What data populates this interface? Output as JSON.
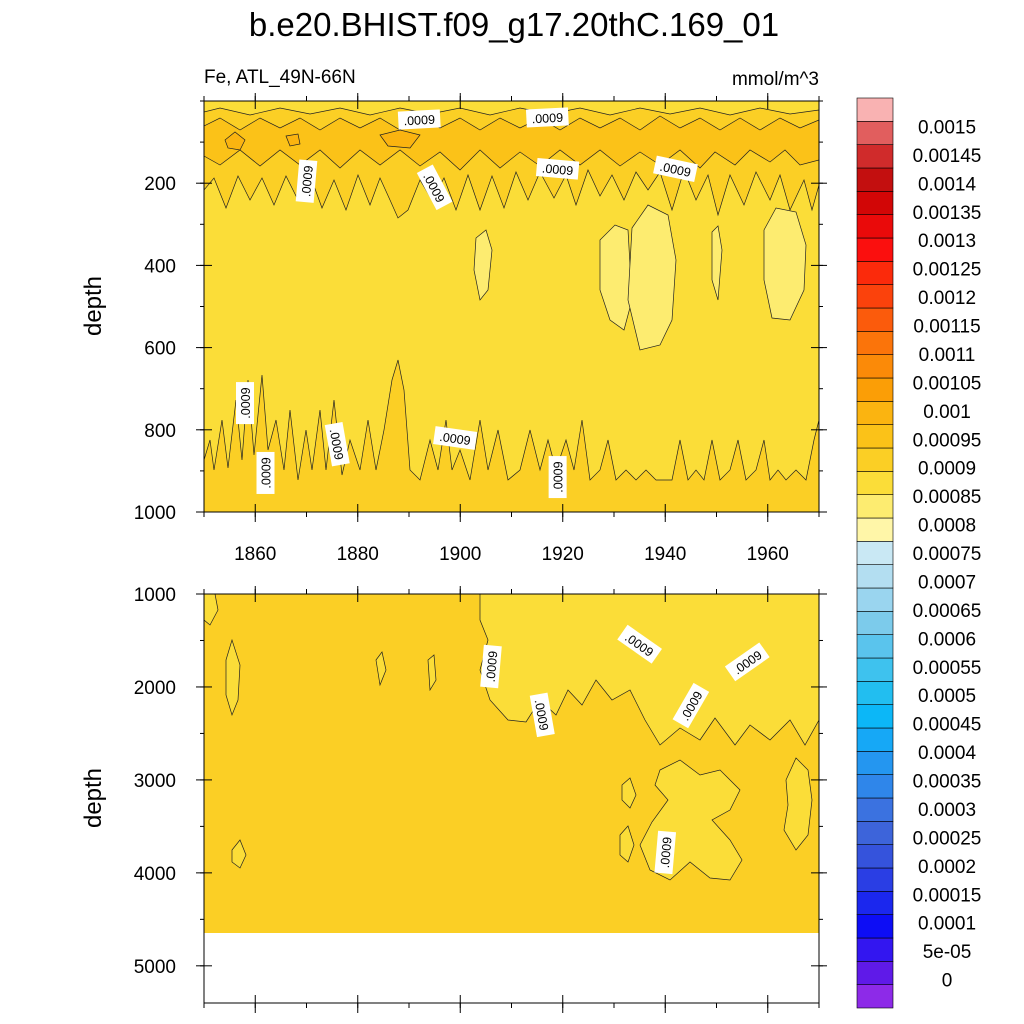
{
  "chart_data": {
    "type": "contour",
    "title": "b.e20.BHIST.f09_g17.20thC.169_01",
    "variable_label": "Fe, ATL_49N-66N",
    "units": "mmol/m^3",
    "xlabel": "",
    "ylabel": "depth",
    "x_range": [
      1850,
      1970
    ],
    "x_ticks": [
      1860,
      1880,
      1900,
      1920,
      1940,
      1960
    ],
    "x_tick_labels": [
      "1860",
      "1880",
      "1900",
      "1920",
      "1940",
      "1960"
    ],
    "panels": [
      {
        "name": "upper",
        "ylim": [
          1000,
          0
        ],
        "y_ticks": [
          200,
          400,
          600,
          800,
          1000
        ],
        "y_tick_labels": [
          "200",
          "400",
          "600",
          "800",
          "1000"
        ],
        "dominant_level": 0.00085,
        "contour_labels": [
          {
            "x": 1892,
            "depth": 45,
            "text": ".0009",
            "angle": -3
          },
          {
            "x": 1917,
            "depth": 40,
            "text": ".0009",
            "angle": -3
          },
          {
            "x": 1870,
            "depth": 195,
            "text": ".0009",
            "angle": -85
          },
          {
            "x": 1895,
            "depth": 210,
            "text": ".0009",
            "angle": 62
          },
          {
            "x": 1919,
            "depth": 165,
            "text": ".0009",
            "angle": 5
          },
          {
            "x": 1942,
            "depth": 165,
            "text": ".0009",
            "angle": 12
          },
          {
            "x": 1858,
            "depth": 735,
            "text": ".0009",
            "angle": -90
          },
          {
            "x": 1876,
            "depth": 835,
            "text": ".0009",
            "angle": 80
          },
          {
            "x": 1899,
            "depth": 820,
            "text": ".0009",
            "angle": 8
          },
          {
            "x": 1862,
            "depth": 905,
            "text": ".0009",
            "angle": -90
          },
          {
            "x": 1919,
            "depth": 915,
            "text": ".0009",
            "angle": -90
          }
        ]
      },
      {
        "name": "lower",
        "ylim": [
          5400,
          1000
        ],
        "y_ticks": [
          1000,
          2000,
          3000,
          4000,
          5000
        ],
        "y_tick_labels": [
          "1000",
          "2000",
          "3000",
          "4000",
          "5000"
        ],
        "dominant_level": 0.0009,
        "data_bottom_depth": 4620,
        "contour_labels": [
          {
            "x": 1906,
            "depth": 1780,
            "text": ".0009",
            "angle": -85
          },
          {
            "x": 1935,
            "depth": 1540,
            "text": ".0009",
            "angle": 35
          },
          {
            "x": 1916,
            "depth": 2300,
            "text": ".0009",
            "angle": 80
          },
          {
            "x": 1956,
            "depth": 1730,
            "text": ".0009",
            "angle": -35
          },
          {
            "x": 1945,
            "depth": 2200,
            "text": ".0009",
            "angle": -60
          },
          {
            "x": 1940,
            "depth": 3780,
            "text": ".0009",
            "angle": -85
          }
        ]
      }
    ],
    "colorbar": {
      "colors": [
        "#8d2ae8",
        "#5f1ae8",
        "#3316f0",
        "#0d0df5",
        "#1b27ee",
        "#2a3ee4",
        "#3553dc",
        "#3d64da",
        "#3b72e0",
        "#2f86ea",
        "#2496f0",
        "#16a8f6",
        "#0cb7f7",
        "#22bef0",
        "#3ec2ee",
        "#5ac4ed",
        "#7ccbeb",
        "#9ad5ef",
        "#b3def1",
        "#c9e8f4",
        "#fff6a8",
        "#fdec70",
        "#fbdd38",
        "#fbcf25",
        "#fbc218",
        "#fbb410",
        "#fb9e06",
        "#fb8a08",
        "#fb740a",
        "#fb5b0c",
        "#fb420c",
        "#fb2a0b",
        "#fb0f0e",
        "#ea0a0a",
        "#d20606",
        "#c30f0f",
        "#d02b2b",
        "#e15e5e",
        "#f9b2b2"
      ],
      "labels": [
        "0",
        "5e-05",
        "0.0001",
        "0.00015",
        "0.0002",
        "0.00025",
        "0.0003",
        "0.00035",
        "0.0004",
        "0.00045",
        "0.0005",
        "0.00055",
        "0.0006",
        "0.00065",
        "0.0007",
        "0.00075",
        "0.0008",
        "0.00085",
        "0.0009",
        "0.00095",
        "0.001",
        "0.00105",
        "0.0011",
        "0.00115",
        "0.0012",
        "0.00125",
        "0.0013",
        "0.00135",
        "0.0014",
        "0.00145",
        "0.0015"
      ]
    }
  }
}
